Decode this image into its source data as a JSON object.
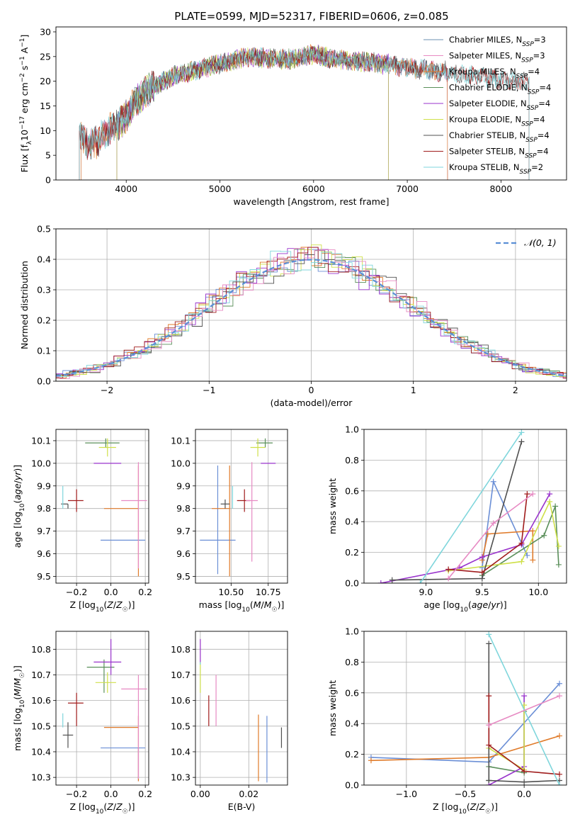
{
  "figure": {
    "title": "PLATE=0599, MJD=52317, FIBERID=0606, z=0.085"
  },
  "chart_data": [
    {
      "id": "spectrum",
      "type": "line",
      "title": "PLATE=0599, MJD=52317, FIBERID=0606, z=0.085",
      "xlabel": "wavelength [Angstrom, rest frame]",
      "ylabel": "Flux [f_λ 10^-17 erg cm^-2 s^-1 A^-1]",
      "xlim": [
        3250,
        8700
      ],
      "ylim": [
        0,
        31
      ],
      "xticks": [
        4000,
        5000,
        6000,
        7000,
        8000
      ],
      "yticks": [
        0,
        5,
        10,
        15,
        20,
        25,
        30
      ],
      "grid": false,
      "legend_position": "top-right",
      "continuum": {
        "x": [
          3500,
          3600,
          3700,
          3800,
          3900,
          4000,
          4100,
          4200,
          4300,
          4400,
          4500,
          4600,
          4700,
          4800,
          4900,
          5000,
          5100,
          5200,
          5300,
          5400,
          5500,
          5600,
          5700,
          5800,
          5900,
          6000,
          6100,
          6200,
          6300,
          6400,
          6500,
          6600,
          6700,
          6800,
          6900,
          7000,
          7100,
          7200,
          7300,
          7400,
          7500,
          7600,
          7700,
          7800,
          7900,
          8000,
          8100,
          8200,
          8300
        ],
        "y": [
          9,
          7,
          8,
          10,
          11,
          13,
          16,
          18,
          19,
          20,
          21,
          21.5,
          22,
          22.5,
          23,
          23.5,
          24,
          24.5,
          25,
          25,
          24.5,
          24.5,
          24.5,
          24.5,
          25,
          25.5,
          25,
          24.5,
          24.5,
          24,
          24,
          24,
          23.5,
          23.5,
          23,
          23,
          22.5,
          22.5,
          22,
          22,
          21.5,
          21.5,
          21,
          21,
          20.5,
          20.5,
          20,
          20,
          20
        ]
      },
      "series": [
        {
          "name": "Chabrier MILES, N_SSP=3",
          "color": "#6b8fb0",
          "start": 3520,
          "end": 7430
        },
        {
          "name": "Salpeter MILES, N_SSP=3",
          "color": "#e78ac3",
          "start": 3520,
          "end": 7430
        },
        {
          "name": "Kroupa MILES, N_SSP=4",
          "color": "#e07b2a",
          "start": 3520,
          "end": 7430
        },
        {
          "name": "Chabrier ELODIE, N_SSP=4",
          "color": "#5a8f5a",
          "start": 3900,
          "end": 6800
        },
        {
          "name": "Salpeter ELODIE, N_SSP=4",
          "color": "#9933cc",
          "start": 3900,
          "end": 6800
        },
        {
          "name": "Kroupa ELODIE, N_SSP=4",
          "color": "#cfe04a",
          "start": 3900,
          "end": 6800
        },
        {
          "name": "Chabrier STELIB, N_SSP=4",
          "color": "#505050",
          "start": 3500,
          "end": 8300
        },
        {
          "name": "Salpeter STELIB, N_SSP=4",
          "color": "#a01c1c",
          "start": 3500,
          "end": 8300
        },
        {
          "name": "Kroupa STELIB, N_SSP=2",
          "color": "#7fd6dc",
          "start": 3500,
          "end": 8300
        }
      ]
    },
    {
      "id": "residuals",
      "type": "line",
      "xlabel": "(data-model)/error",
      "ylabel": "Normed distribution",
      "xlim": [
        -2.5,
        2.5
      ],
      "ylim": [
        0,
        0.5
      ],
      "xticks": [
        -2,
        -1,
        0,
        1,
        2
      ],
      "yticks": [
        0.0,
        0.1,
        0.2,
        0.3,
        0.4,
        0.5
      ],
      "grid": true,
      "legend_position": "top-right",
      "gaussian_label": "𝒩(0, 1)",
      "gaussian_color": "#5b8fd6",
      "bin_width": 0.1,
      "histogram_colors": [
        "#6b8fd6",
        "#e07b2a",
        "#5a8f5a",
        "#9933cc",
        "#cfe04a",
        "#505050",
        "#a01c1c",
        "#7fd6dc",
        "#e78ac3"
      ]
    },
    {
      "id": "age-vs-Z",
      "type": "scatter",
      "xlabel": "Z [log10(Z/Z☉)]",
      "ylabel": "age  [log10(age/yr)]",
      "xlim": [
        -0.32,
        0.22
      ],
      "ylim": [
        9.47,
        10.15
      ],
      "xticks": [
        -0.2,
        0.0,
        0.2
      ],
      "yticks": [
        9.5,
        9.6,
        9.7,
        9.8,
        9.9,
        10.0,
        10.1
      ],
      "grid": true,
      "points": [
        {
          "x": 0.16,
          "y": 9.66,
          "xerr": [
            0.22,
            0.04
          ],
          "yerr": [
            0.0,
            0.0
          ],
          "color": "#6b8fd6"
        },
        {
          "x": 0.16,
          "y": 9.8,
          "xerr": [
            0.2,
            0.0
          ],
          "yerr": [
            0.3,
            0.19
          ],
          "color": "#e07b2a"
        },
        {
          "x": -0.03,
          "y": 10.09,
          "xerr": [
            0.12,
            0.08
          ],
          "yerr": [
            0.02,
            0.02
          ],
          "color": "#5a8f5a"
        },
        {
          "x": -0.02,
          "y": 10.0,
          "xerr": [
            0.08,
            0.08
          ],
          "yerr": [
            0.0,
            0.0
          ],
          "color": "#9933cc"
        },
        {
          "x": -0.02,
          "y": 10.07,
          "xerr": [
            0.05,
            0.05
          ],
          "yerr": [
            0.04,
            0.04
          ],
          "color": "#cfe04a"
        },
        {
          "x": -0.25,
          "y": 9.82,
          "xerr": [
            0.04,
            0.0
          ],
          "yerr": [
            0.02,
            0.0
          ],
          "color": "#505050"
        },
        {
          "x": -0.2,
          "y": 9.835,
          "xerr": [
            0.05,
            0.04
          ],
          "yerr": [
            0.05,
            0.05
          ],
          "color": "#a01c1c"
        },
        {
          "x": -0.28,
          "y": 9.84,
          "xerr": [
            0.0,
            0.0
          ],
          "yerr": [
            0.04,
            0.06
          ],
          "color": "#7fd6dc"
        },
        {
          "x": 0.16,
          "y": 9.835,
          "xerr": [
            0.1,
            0.05
          ],
          "yerr": [
            0.3,
            0.17
          ],
          "color": "#e78ac3"
        }
      ]
    },
    {
      "id": "age-vs-mass",
      "type": "scatter",
      "xlabel": "mass [log10(M/M☉)]",
      "ylabel": "",
      "xlim": [
        10.26,
        10.88
      ],
      "ylim": [
        9.47,
        10.15
      ],
      "xticks": [
        10.5,
        10.75
      ],
      "xtick_labels": [
        "10.50",
        "10.75"
      ],
      "yticks": [
        9.5,
        9.6,
        9.7,
        9.8,
        9.9,
        10.0,
        10.1
      ],
      "grid": true,
      "points": [
        {
          "x": 10.41,
          "y": 9.66,
          "xerr": [
            0.12,
            0.12
          ],
          "yerr": [
            0.15,
            0.33
          ],
          "color": "#6b8fd6"
        },
        {
          "x": 10.49,
          "y": 9.8,
          "xerr": [
            0.12,
            0.0
          ],
          "yerr": [
            0.3,
            0.19
          ],
          "color": "#e07b2a"
        },
        {
          "x": 10.73,
          "y": 10.09,
          "xerr": [
            0.06,
            0.05
          ],
          "yerr": [
            0.02,
            0.02
          ],
          "color": "#5a8f5a"
        },
        {
          "x": 10.75,
          "y": 10.0,
          "xerr": [
            0.05,
            0.05
          ],
          "yerr": [
            0.0,
            0.0
          ],
          "color": "#9933cc"
        },
        {
          "x": 10.68,
          "y": 10.07,
          "xerr": [
            0.05,
            0.05
          ],
          "yerr": [
            0.04,
            0.04
          ],
          "color": "#cfe04a"
        },
        {
          "x": 10.46,
          "y": 9.82,
          "xerr": [
            0.03,
            0.03
          ],
          "yerr": [
            0.02,
            0.02
          ],
          "color": "#505050"
        },
        {
          "x": 10.59,
          "y": 9.835,
          "xerr": [
            0.05,
            0.04
          ],
          "yerr": [
            0.05,
            0.05
          ],
          "color": "#a01c1c"
        },
        {
          "x": 10.51,
          "y": 9.84,
          "xerr": [
            0.0,
            0.0
          ],
          "yerr": [
            0.04,
            0.06
          ],
          "color": "#7fd6dc"
        },
        {
          "x": 10.64,
          "y": 9.835,
          "xerr": [
            0.04,
            0.04
          ],
          "yerr": [
            0.27,
            0.17
          ],
          "color": "#e78ac3"
        }
      ]
    },
    {
      "id": "weight-vs-age",
      "type": "line",
      "xlabel": "age  [log10(age/yr)]",
      "ylabel": "mass weight",
      "xlim": [
        8.45,
        10.25
      ],
      "ylim": [
        0,
        1
      ],
      "xticks": [
        9.0,
        9.5,
        10.0
      ],
      "yticks": [
        0.0,
        0.2,
        0.4,
        0.6,
        0.8,
        1.0
      ],
      "grid": true,
      "series": [
        {
          "color": "#6b8fd6",
          "x": [
            9.5,
            9.6,
            9.9
          ],
          "y": [
            0.1,
            0.66,
            0.18
          ]
        },
        {
          "color": "#e07b2a",
          "x": [
            9.5,
            9.55,
            9.95,
            9.95
          ],
          "y": [
            0.15,
            0.32,
            0.34,
            0.15
          ]
        },
        {
          "color": "#5a8f5a",
          "x": [
            9.5,
            10.05,
            10.15,
            10.18
          ],
          "y": [
            0.05,
            0.31,
            0.5,
            0.12
          ]
        },
        {
          "color": "#9933cc",
          "x": [
            8.6,
            9.3,
            9.5,
            9.85,
            10.1
          ],
          "y": [
            0.0,
            0.1,
            0.17,
            0.25,
            0.58
          ]
        },
        {
          "color": "#cfe04a",
          "x": [
            9.2,
            9.85,
            10.1,
            10.18
          ],
          "y": [
            0.08,
            0.14,
            0.53,
            0.24
          ]
        },
        {
          "color": "#505050",
          "x": [
            8.7,
            9.5,
            9.85
          ],
          "y": [
            0.02,
            0.03,
            0.92
          ]
        },
        {
          "color": "#a01c1c",
          "x": [
            9.2,
            9.5,
            9.85,
            9.9
          ],
          "y": [
            0.09,
            0.07,
            0.26,
            0.58
          ]
        },
        {
          "color": "#7fd6dc",
          "x": [
            8.95,
            9.85
          ],
          "y": [
            0.0,
            0.98
          ]
        },
        {
          "color": "#e78ac3",
          "x": [
            9.2,
            9.6,
            9.95
          ],
          "y": [
            0.03,
            0.39,
            0.58
          ]
        }
      ]
    },
    {
      "id": "mass-vs-Z",
      "type": "scatter",
      "xlabel": "Z [log10(Z/Z☉)]",
      "ylabel": "mass [log10(M/M☉)]",
      "xlim": [
        -0.32,
        0.22
      ],
      "ylim": [
        10.27,
        10.87
      ],
      "xticks": [
        -0.2,
        0.0,
        0.2
      ],
      "yticks": [
        10.3,
        10.4,
        10.5,
        10.6,
        10.7,
        10.8
      ],
      "grid": true,
      "points": [
        {
          "x": 0.16,
          "y": 10.415,
          "xerr": [
            0.22,
            0.04
          ],
          "yerr": [
            0.13,
            0.0
          ],
          "color": "#6b8fd6"
        },
        {
          "x": 0.16,
          "y": 10.495,
          "xerr": [
            0.2,
            0.0
          ],
          "yerr": [
            0.21,
            0.045
          ],
          "color": "#e07b2a"
        },
        {
          "x": -0.04,
          "y": 10.73,
          "xerr": [
            0.1,
            0.06
          ],
          "yerr": [
            0.1,
            0.03
          ],
          "color": "#5a8f5a"
        },
        {
          "x": 0.0,
          "y": 10.75,
          "xerr": [
            0.1,
            0.06
          ],
          "yerr": [
            0.05,
            0.09
          ],
          "color": "#9933cc"
        },
        {
          "x": -0.02,
          "y": 10.67,
          "xerr": [
            0.07,
            0.05
          ],
          "yerr": [
            0.04,
            0.04
          ],
          "color": "#cfe04a"
        },
        {
          "x": -0.25,
          "y": 10.465,
          "xerr": [
            0.03,
            0.03
          ],
          "yerr": [
            0.05,
            0.05
          ],
          "color": "#505050"
        },
        {
          "x": -0.2,
          "y": 10.59,
          "xerr": [
            0.05,
            0.04
          ],
          "yerr": [
            0.09,
            0.04
          ],
          "color": "#a01c1c"
        },
        {
          "x": -0.28,
          "y": 10.515,
          "xerr": [
            0.0,
            0.0
          ],
          "yerr": [
            0.02,
            0.035
          ],
          "color": "#7fd6dc"
        },
        {
          "x": 0.16,
          "y": 10.645,
          "xerr": [
            0.1,
            0.05
          ],
          "yerr": [
            0.35,
            0.055
          ],
          "color": "#e78ac3"
        }
      ]
    },
    {
      "id": "mass-vs-EBV",
      "type": "scatter",
      "xlabel": "E(B-V)",
      "ylabel": "",
      "xlim": [
        -0.002,
        0.036
      ],
      "ylim": [
        10.27,
        10.87
      ],
      "xticks": [
        0.0,
        0.02
      ],
      "xtick_labels": [
        "0.00",
        "0.02"
      ],
      "yticks": [
        10.3,
        10.4,
        10.5,
        10.6,
        10.7,
        10.8
      ],
      "grid": true,
      "points": [
        {
          "x": 0.0275,
          "y": 10.41,
          "yerr": [
            0.13,
            0.13
          ],
          "color": "#6b8fd6"
        },
        {
          "x": 0.024,
          "y": 10.415,
          "yerr": [
            0.13,
            0.13
          ],
          "color": "#e07b2a"
        },
        {
          "x": 0.0,
          "y": 10.745,
          "yerr": [
            0.005,
            0.005
          ],
          "color": "#5a8f5a"
        },
        {
          "x": 0.0,
          "y": 10.79,
          "yerr": [
            0.05,
            0.05
          ],
          "color": "#9933cc"
        },
        {
          "x": 0.0,
          "y": 10.69,
          "yerr": [
            0.06,
            0.06
          ],
          "color": "#cfe04a"
        },
        {
          "x": 0.0335,
          "y": 10.455,
          "yerr": [
            0.04,
            0.04
          ],
          "color": "#505050"
        },
        {
          "x": 0.0035,
          "y": 10.56,
          "yerr": [
            0.06,
            0.06
          ],
          "color": "#a01c1c"
        },
        {
          "x": 0.0,
          "y": 10.745,
          "yerr": [
            0.005,
            0.005
          ],
          "color": "#7fd6dc"
        },
        {
          "x": 0.0065,
          "y": 10.6,
          "yerr": [
            0.1,
            0.1
          ],
          "color": "#e78ac3"
        }
      ]
    },
    {
      "id": "weight-vs-Z",
      "type": "line",
      "xlabel": "Z [log10(Z/Z☉)]",
      "ylabel": "mass weight",
      "xlim": [
        -1.36,
        0.36
      ],
      "ylim": [
        0,
        1
      ],
      "xticks": [
        -1.0,
        -0.5,
        0.0
      ],
      "yticks": [
        0.0,
        0.2,
        0.4,
        0.6,
        0.8,
        1.0
      ],
      "grid": true,
      "series": [
        {
          "color": "#6b8fd6",
          "x": [
            -1.3,
            -0.3,
            0.3
          ],
          "y": [
            0.18,
            0.15,
            0.66
          ]
        },
        {
          "color": "#e07b2a",
          "x": [
            -1.3,
            -0.3,
            0.3
          ],
          "y": [
            0.16,
            0.18,
            0.32
          ]
        },
        {
          "color": "#5a8f5a",
          "x": [
            -0.3,
            -0.3,
            0.0,
            0.0
          ],
          "y": [
            0.03,
            0.12,
            0.08,
            0.48
          ]
        },
        {
          "color": "#9933cc",
          "x": [
            -0.3,
            0.0,
            0.0
          ],
          "y": [
            0.0,
            0.12,
            0.58
          ]
        },
        {
          "color": "#cfe04a",
          "x": [
            -0.3,
            0.0,
            0.0
          ],
          "y": [
            0.24,
            0.1,
            0.52
          ]
        },
        {
          "color": "#505050",
          "x": [
            -0.3,
            -0.3,
            0.0,
            0.3
          ],
          "y": [
            0.92,
            0.03,
            0.02,
            0.03
          ]
        },
        {
          "color": "#a01c1c",
          "x": [
            -0.3,
            -0.3,
            0.0,
            0.3
          ],
          "y": [
            0.58,
            0.26,
            0.09,
            0.07
          ]
        },
        {
          "color": "#7fd6dc",
          "x": [
            -0.3,
            0.3
          ],
          "y": [
            0.98,
            0.0
          ]
        },
        {
          "color": "#e78ac3",
          "x": [
            -0.3,
            0.3
          ],
          "y": [
            0.39,
            0.58
          ]
        }
      ]
    }
  ]
}
